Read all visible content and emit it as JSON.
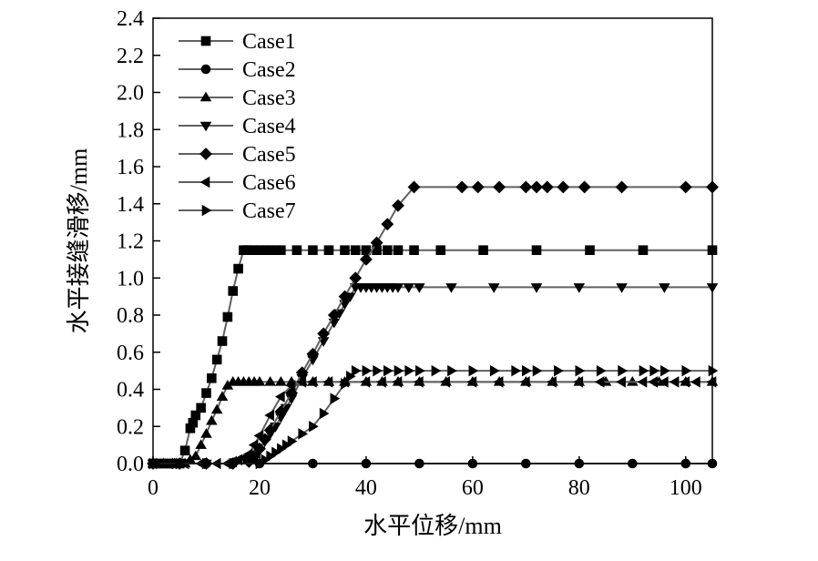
{
  "chart_data": {
    "type": "line",
    "xlabel": "水平位移/mm",
    "ylabel": "水平接缝滑移/mm",
    "xlim": [
      0,
      105
    ],
    "ylim": [
      0,
      2.4
    ],
    "xticks": [
      0,
      20,
      40,
      60,
      80,
      100
    ],
    "yticks": [
      0.0,
      0.2,
      0.4,
      0.6,
      0.8,
      1.0,
      1.2,
      1.4,
      1.6,
      1.8,
      2.0,
      2.2,
      2.4
    ],
    "xtick_labels": [
      "0",
      "20",
      "40",
      "60",
      "80",
      "100"
    ],
    "ytick_labels": [
      "0.0",
      "0.2",
      "0.4",
      "0.6",
      "0.8",
      "1.0",
      "1.2",
      "1.4",
      "1.6",
      "1.8",
      "2.0",
      "2.2",
      "2.4"
    ],
    "legend_position": "top-left",
    "grid": false,
    "series": [
      {
        "name": "Case1",
        "marker": "square",
        "x": [
          0,
          1,
          2,
          3,
          4,
          5,
          6,
          7,
          7.5,
          8,
          9,
          10,
          11,
          12,
          13,
          14,
          15,
          16,
          17,
          17.5,
          18,
          19,
          20,
          21,
          22,
          23,
          24,
          27,
          30,
          33,
          36,
          38,
          40,
          42,
          44,
          46,
          49,
          54,
          62,
          72,
          82,
          92,
          105
        ],
        "y": [
          0,
          0,
          0,
          0,
          0,
          0,
          0.07,
          0.19,
          0.22,
          0.26,
          0.3,
          0.38,
          0.46,
          0.56,
          0.66,
          0.79,
          0.93,
          1.05,
          1.15,
          1.15,
          1.15,
          1.15,
          1.15,
          1.15,
          1.15,
          1.15,
          1.15,
          1.15,
          1.15,
          1.15,
          1.15,
          1.15,
          1.15,
          1.15,
          1.15,
          1.15,
          1.15,
          1.15,
          1.15,
          1.15,
          1.15,
          1.15,
          1.15
        ]
      },
      {
        "name": "Case2",
        "marker": "circle",
        "x": [
          0,
          3,
          5,
          10,
          20,
          30,
          40,
          50,
          60,
          70,
          80,
          90,
          100,
          105
        ],
        "y": [
          0,
          0,
          0,
          0,
          0,
          0,
          0,
          0,
          0,
          0,
          0,
          0,
          0,
          0
        ]
      },
      {
        "name": "Case3",
        "marker": "triangle-up",
        "x": [
          0,
          2,
          4,
          6,
          7,
          8,
          9,
          10,
          11,
          12,
          13,
          14,
          15,
          16,
          17,
          18,
          19,
          20,
          22,
          24,
          26,
          28,
          30,
          33,
          36,
          40,
          43,
          46,
          50,
          55,
          60,
          65,
          70,
          75,
          80,
          85,
          90,
          95,
          100,
          105
        ],
        "y": [
          0,
          0,
          0,
          0,
          0.02,
          0.04,
          0.1,
          0.16,
          0.23,
          0.29,
          0.36,
          0.42,
          0.44,
          0.44,
          0.44,
          0.44,
          0.44,
          0.44,
          0.44,
          0.44,
          0.44,
          0.44,
          0.44,
          0.44,
          0.44,
          0.44,
          0.44,
          0.44,
          0.44,
          0.44,
          0.44,
          0.44,
          0.44,
          0.44,
          0.44,
          0.44,
          0.44,
          0.44,
          0.44,
          0.44
        ]
      },
      {
        "name": "Case4",
        "marker": "triangle-down",
        "x": [
          0,
          5,
          10,
          15,
          18,
          19,
          20,
          21,
          22,
          23,
          24,
          25,
          26,
          28,
          30,
          32,
          34,
          35,
          36,
          37,
          38,
          39,
          40,
          41,
          42,
          43,
          44,
          45,
          46,
          48,
          50,
          56,
          64,
          72,
          80,
          88,
          96,
          105
        ],
        "y": [
          0,
          0,
          0,
          0,
          0.01,
          0.03,
          0.07,
          0.12,
          0.16,
          0.2,
          0.25,
          0.3,
          0.35,
          0.46,
          0.56,
          0.66,
          0.76,
          0.81,
          0.86,
          0.9,
          0.95,
          0.95,
          0.95,
          0.95,
          0.95,
          0.95,
          0.95,
          0.95,
          0.95,
          0.95,
          0.95,
          0.95,
          0.95,
          0.95,
          0.95,
          0.95,
          0.95,
          0.95
        ]
      },
      {
        "name": "Case5",
        "marker": "diamond",
        "x": [
          0,
          5,
          10,
          15,
          18,
          19,
          20,
          21,
          22,
          24,
          26,
          28,
          30,
          32,
          34,
          36,
          38,
          40,
          42,
          44,
          46,
          49,
          58,
          61,
          65,
          70,
          72,
          74,
          77,
          81,
          88,
          100,
          105
        ],
        "y": [
          0,
          0,
          0,
          0,
          0.01,
          0.04,
          0.08,
          0.13,
          0.18,
          0.28,
          0.38,
          0.49,
          0.59,
          0.7,
          0.8,
          0.9,
          1.0,
          1.1,
          1.19,
          1.29,
          1.39,
          1.49,
          1.49,
          1.49,
          1.49,
          1.49,
          1.49,
          1.49,
          1.49,
          1.49,
          1.49,
          1.49,
          1.49
        ]
      },
      {
        "name": "Case6",
        "marker": "triangle-left",
        "x": [
          0,
          3,
          6,
          9,
          12,
          14,
          15,
          16,
          17,
          18,
          19,
          20,
          22,
          24,
          26,
          28,
          30,
          33,
          36,
          40,
          43,
          46,
          50,
          55,
          60,
          65,
          70,
          75,
          80,
          84,
          88,
          92,
          94,
          96,
          98,
          100,
          102,
          105
        ],
        "y": [
          0,
          0,
          0,
          0,
          0,
          0,
          0.01,
          0.02,
          0.03,
          0.05,
          0.1,
          0.15,
          0.26,
          0.36,
          0.42,
          0.44,
          0.44,
          0.44,
          0.44,
          0.44,
          0.44,
          0.44,
          0.44,
          0.44,
          0.44,
          0.44,
          0.44,
          0.44,
          0.44,
          0.44,
          0.44,
          0.44,
          0.44,
          0.44,
          0.44,
          0.44,
          0.44,
          0.44
        ]
      },
      {
        "name": "Case7",
        "marker": "triangle-right",
        "x": [
          0,
          5,
          10,
          15,
          20,
          21,
          22,
          23,
          24,
          25,
          26,
          28,
          30,
          32,
          34,
          36,
          37,
          38,
          40,
          42,
          44,
          46,
          48,
          50,
          53,
          56,
          60,
          64,
          68,
          70,
          72,
          76,
          80,
          84,
          88,
          92,
          94,
          96,
          100,
          105
        ],
        "y": [
          0,
          0,
          0,
          0,
          0,
          0.02,
          0.04,
          0.06,
          0.08,
          0.1,
          0.12,
          0.16,
          0.2,
          0.27,
          0.35,
          0.43,
          0.47,
          0.5,
          0.5,
          0.5,
          0.5,
          0.5,
          0.5,
          0.5,
          0.5,
          0.5,
          0.5,
          0.5,
          0.5,
          0.5,
          0.5,
          0.5,
          0.5,
          0.5,
          0.5,
          0.5,
          0.5,
          0.5,
          0.5,
          0.5
        ]
      }
    ]
  }
}
